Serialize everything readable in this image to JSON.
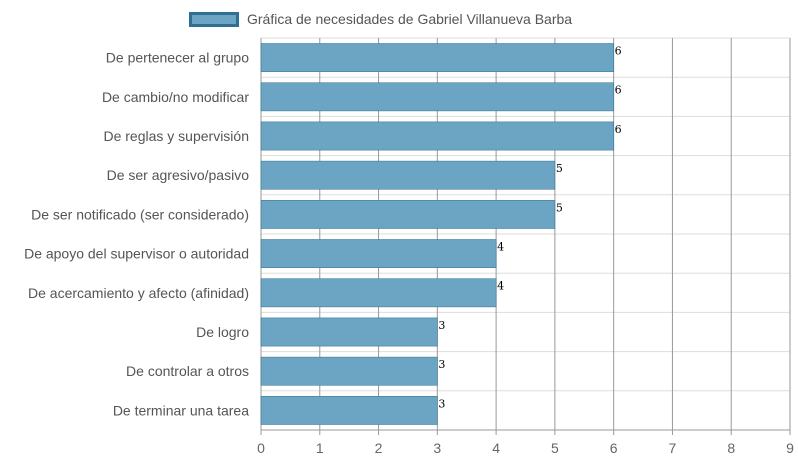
{
  "chart_data": {
    "type": "bar",
    "orientation": "horizontal",
    "legend": {
      "label": "Gráfica de necesidades de Gabriel Villanueva Barba",
      "position": "top"
    },
    "categories": [
      "De pertenecer al grupo",
      "De cambio/no modificar",
      "De reglas y supervisión",
      "De ser agresivo/pasivo",
      "De ser notificado (ser considerado)",
      "De apoyo del supervisor o autoridad",
      "De acercamiento y afecto (afinidad)",
      "De logro",
      "De controlar a otros",
      "De terminar una tarea"
    ],
    "series": [
      {
        "name": "Gráfica de necesidades de Gabriel Villanueva Barba",
        "values": [
          6,
          6,
          6,
          5,
          5,
          4,
          4,
          3,
          3,
          3
        ]
      }
    ],
    "xlim": [
      0,
      9
    ],
    "x_ticks": [
      "0",
      "1",
      "2",
      "3",
      "4",
      "5",
      "6",
      "7",
      "8",
      "9"
    ],
    "grid": true,
    "colors": {
      "bar_fill": "#6ba5c3",
      "bar_border": "#2e6f93",
      "grid": "#dddddd",
      "grid_vertical": "#999999"
    }
  }
}
